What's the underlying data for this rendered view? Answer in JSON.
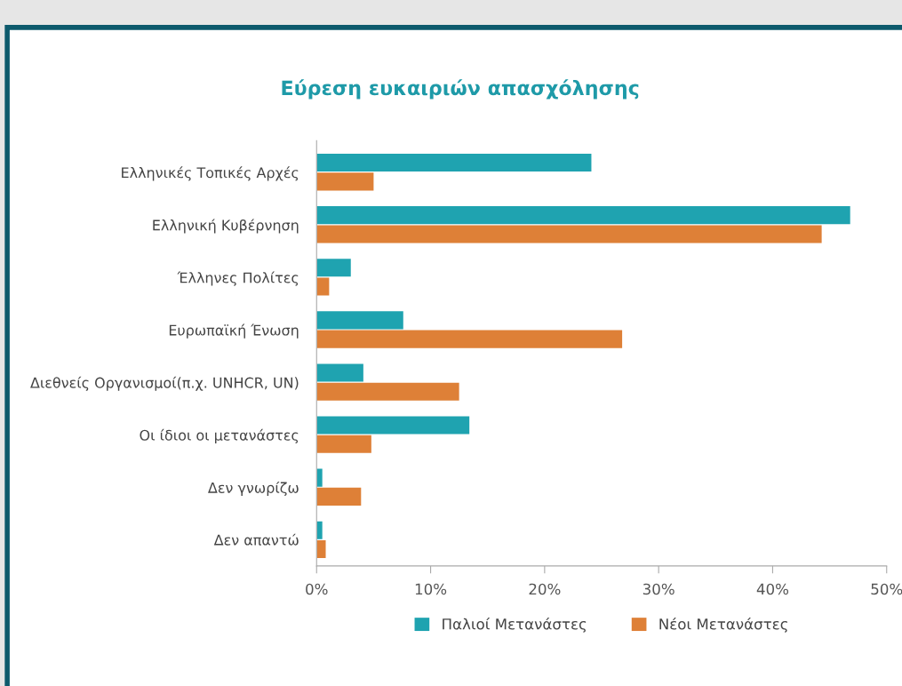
{
  "chart_data": {
    "type": "bar",
    "orientation": "horizontal",
    "title": "Εύρεση ευκαιριών απασχόλησης",
    "categories": [
      "Ελληνικές Τοπικές Αρχές",
      "Ελληνική Κυβέρνηση",
      "Έλληνες Πολίτες",
      "Ευρωπαϊκή Ένωση",
      "Διεθνείς Οργανισμοί(π.χ. UNHCR, UN)",
      "Οι ίδιοι οι μετανάστες",
      "Δεν γνωρίζω",
      "Δεν απαντώ"
    ],
    "series": [
      {
        "name": "Παλιοί Μετανάστες",
        "color": "#1fa3b0",
        "values": [
          24.1,
          46.8,
          3.0,
          7.6,
          4.1,
          13.4,
          0.5,
          0.5
        ]
      },
      {
        "name": "Νέοι Μετανάστες",
        "color": "#de8037",
        "values": [
          5.0,
          44.3,
          1.1,
          26.8,
          12.5,
          4.8,
          3.9,
          0.8
        ]
      }
    ],
    "xlim": [
      0,
      50
    ],
    "xticks": [
      {
        "value": 0,
        "label": "0%"
      },
      {
        "value": 10,
        "label": "10%"
      },
      {
        "value": 20,
        "label": "20%"
      },
      {
        "value": 30,
        "label": "30%"
      },
      {
        "value": 40,
        "label": "40%"
      },
      {
        "value": 50,
        "label": "50%"
      }
    ],
    "grid": false,
    "legend": "bottom"
  }
}
